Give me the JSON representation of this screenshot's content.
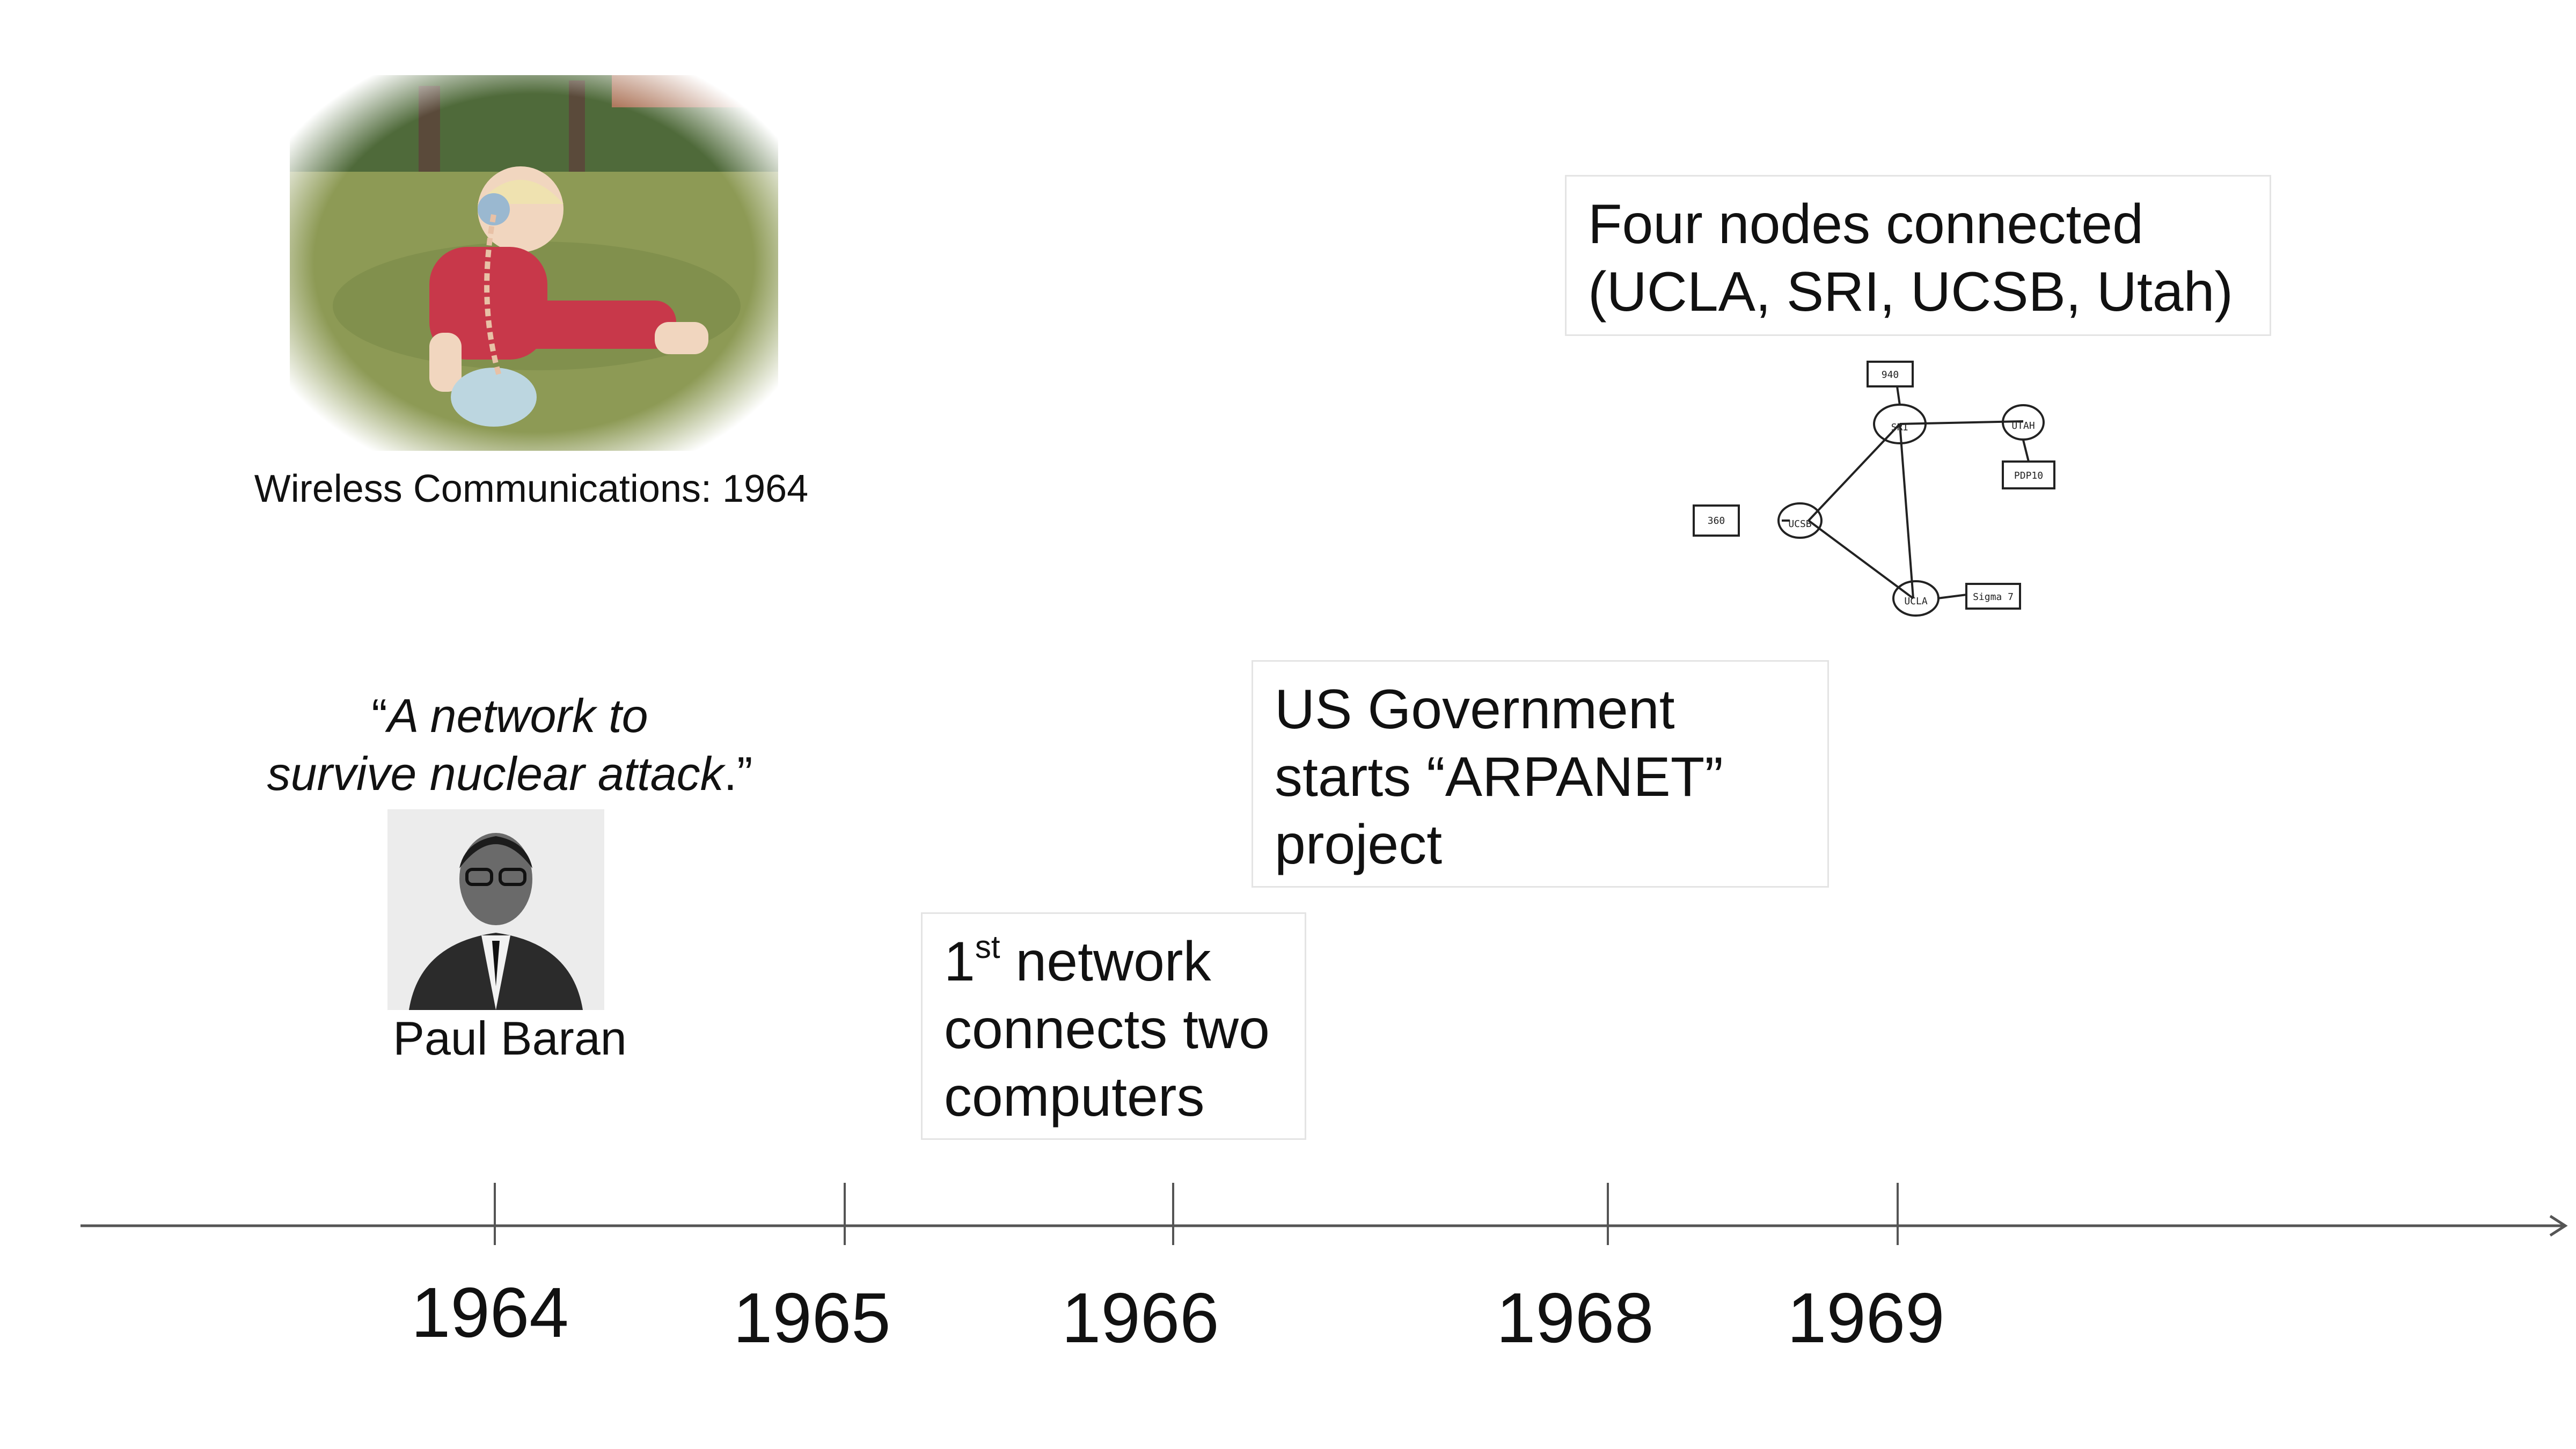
{
  "photo_caption": "Wireless Communications: 1964",
  "quote": {
    "open": "“",
    "line1": "A network to",
    "line2": "survive nuclear attack",
    "close": ".”"
  },
  "person": "Paul Baran",
  "events": {
    "first_network": {
      "prefix": "1",
      "sup": "st",
      "line1_rest": " network",
      "line2": "connects two",
      "line3": "computers"
    },
    "arpanet": {
      "line1": "US Government",
      "line2": "starts “ARPANET”",
      "line3": "project"
    },
    "four_nodes": {
      "line1": "Four nodes connected",
      "line2": "(UCLA, SRI, UCSB, Utah)"
    }
  },
  "timeline": {
    "years": [
      "1964",
      "1965",
      "1966",
      "1968",
      "1969"
    ]
  },
  "network_sketch": {
    "nodes": [
      "SRI",
      "UTAH",
      "UCSB",
      "UCLA"
    ],
    "hosts": [
      "940",
      "PDP10",
      "360",
      "Sigma 7"
    ]
  },
  "colors": {
    "axis": "#555555",
    "box_border": "#e4e4e4",
    "grass": "#8a9a4a",
    "outfit": "#c8384a"
  }
}
